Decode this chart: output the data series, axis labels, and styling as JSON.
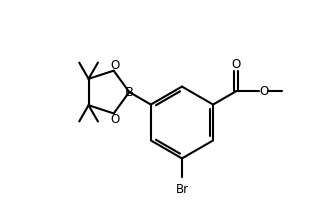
{
  "background": "#ffffff",
  "line_color": "#000000",
  "line_width": 1.5,
  "font_size": 8.5,
  "fig_width": 3.14,
  "fig_height": 2.2,
  "dpi": 100,
  "xlim": [
    0,
    10
  ],
  "ylim": [
    0,
    7
  ]
}
